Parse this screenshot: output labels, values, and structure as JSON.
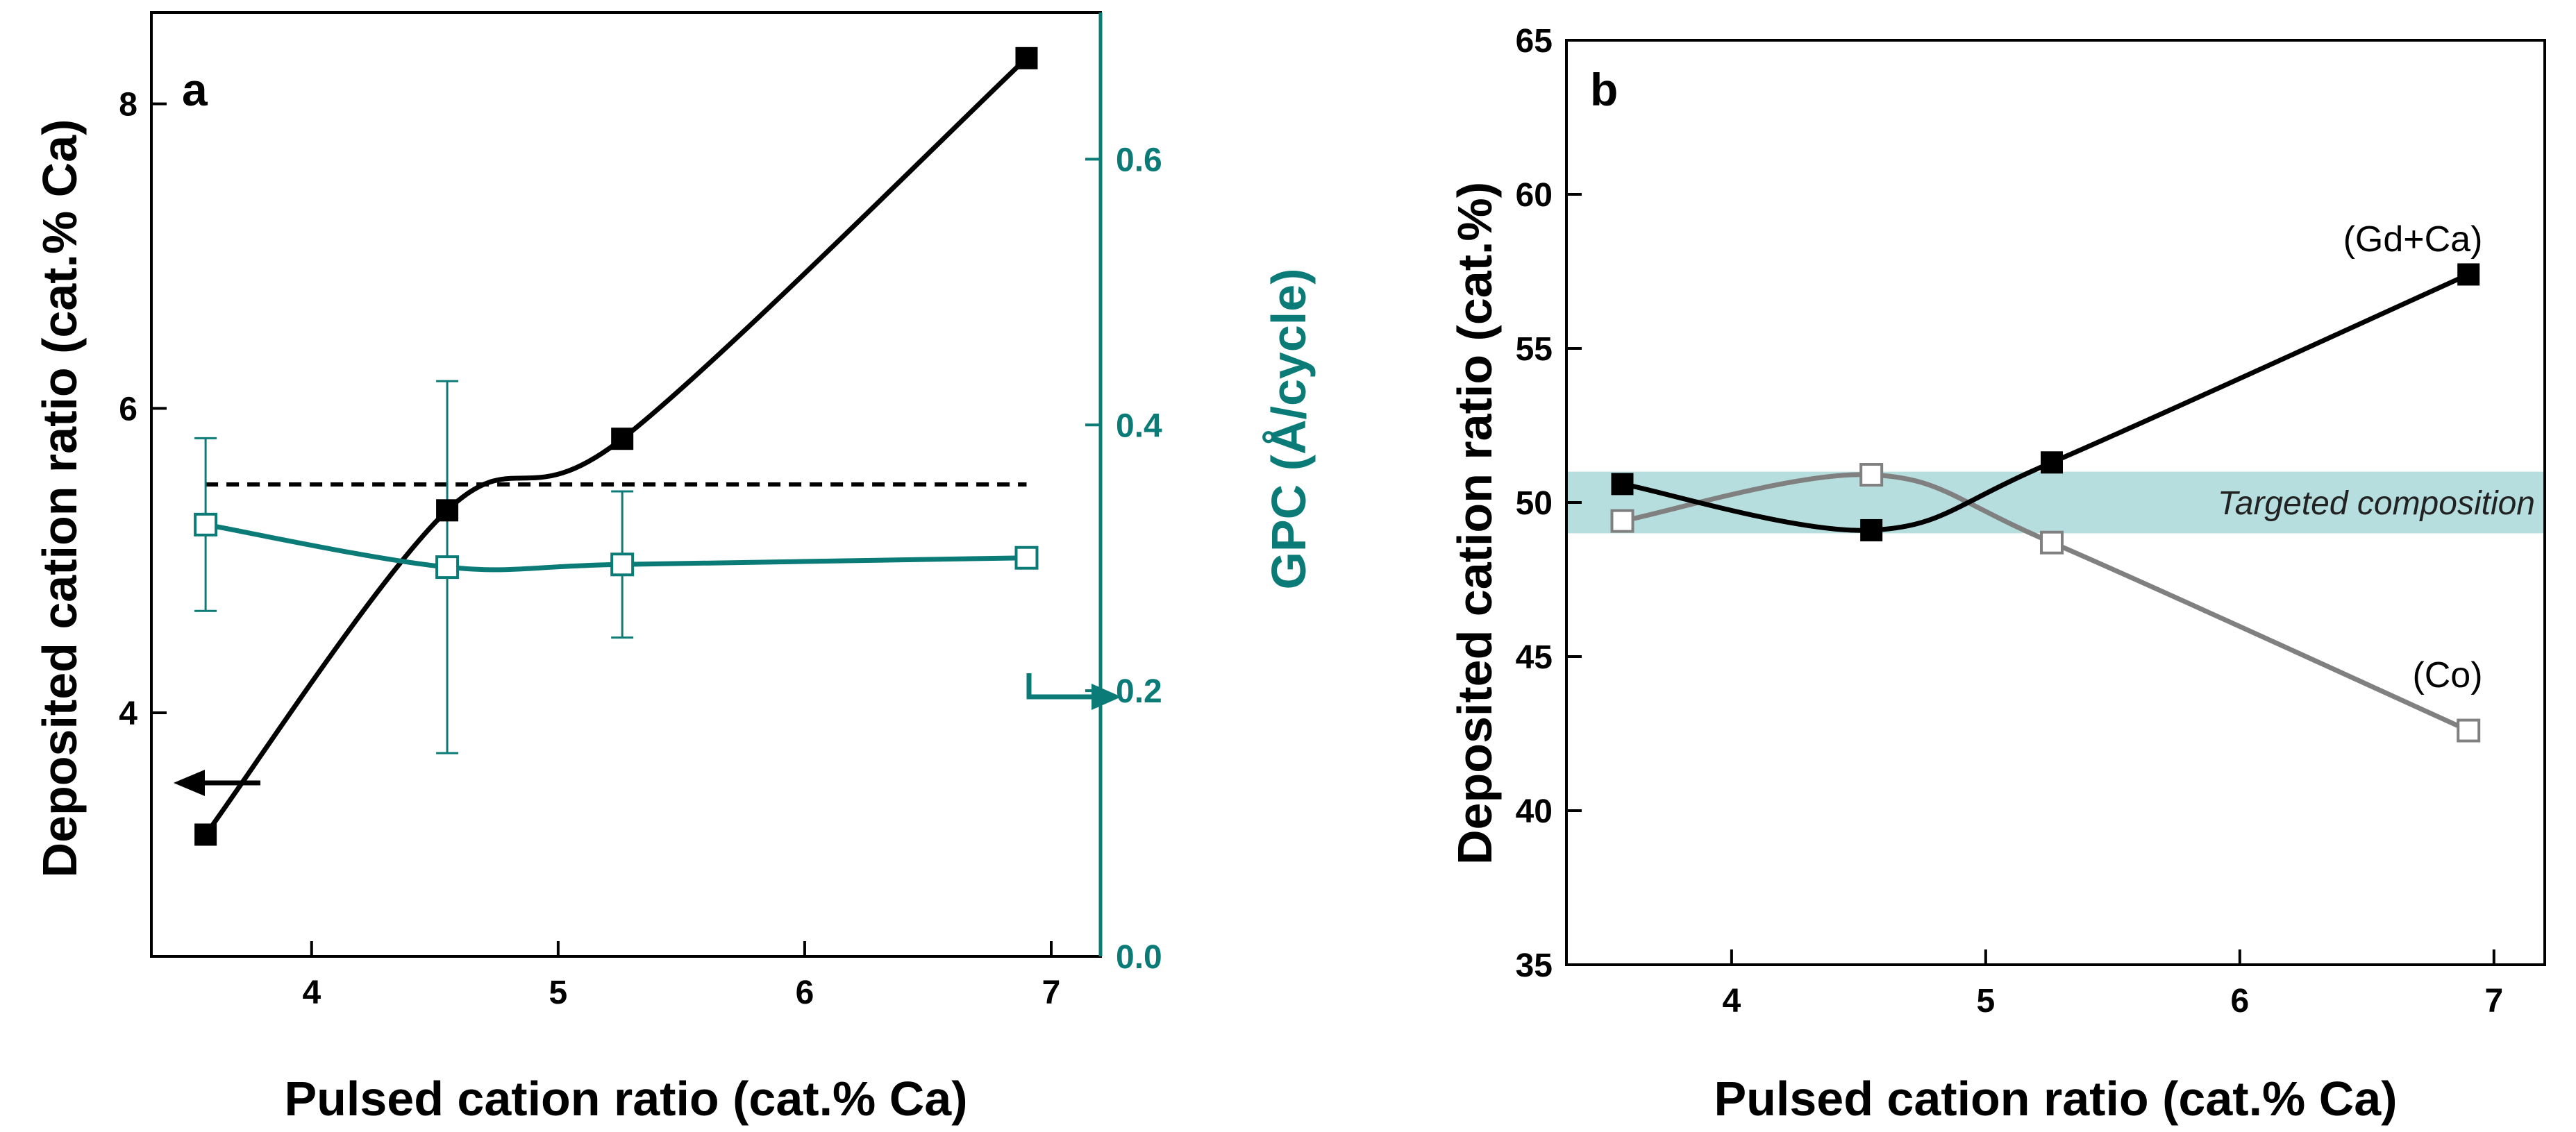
{
  "colors": {
    "black": "#000000",
    "teal": "#0b7b78",
    "gray": "#808080",
    "band": "#9fd3d3"
  },
  "chart_data": [
    {
      "type": "line",
      "panel_label": "a",
      "xlabel": "Pulsed cation ratio (cat.% Ca)",
      "ylabel": "Deposited cation ratio (cat.% Ca)",
      "y2label": "GPC (Å/cycle)",
      "xlim": [
        3.35,
        7.2
      ],
      "ylim": [
        2.4,
        8.6
      ],
      "y2lim": [
        0.0,
        0.7
      ],
      "xticks": [
        4,
        5,
        6,
        7
      ],
      "yticks": [
        4,
        6,
        8
      ],
      "y2ticks": [
        0.0,
        0.2,
        0.4,
        0.6
      ],
      "y2tick_labels": [
        "0.0",
        "0.2",
        "0.4",
        "0.6"
      ],
      "reference_line": {
        "y": 5.5,
        "style": "dashed"
      },
      "series": [
        {
          "name": "Deposited cation ratio",
          "axis": "left",
          "marker": "filled-square",
          "x": [
            3.57,
            4.55,
            5.26,
            6.9
          ],
          "values": [
            3.2,
            5.33,
            5.8,
            8.3
          ]
        },
        {
          "name": "GPC",
          "axis": "right",
          "marker": "open-square",
          "x": [
            3.57,
            4.55,
            5.26,
            6.9
          ],
          "values": [
            0.325,
            0.293,
            0.295,
            0.3
          ],
          "errors": [
            0.065,
            0.14,
            0.055,
            0.0
          ]
        }
      ],
      "annotations": [
        {
          "type": "arrow-left",
          "series": "Deposited cation ratio"
        },
        {
          "type": "arrow-right",
          "series": "GPC"
        }
      ]
    },
    {
      "type": "line",
      "panel_label": "b",
      "xlabel": "Pulsed cation ratio (cat.% Ca)",
      "ylabel": "Deposited cation ratio (cat.%)",
      "xlim": [
        3.35,
        7.2
      ],
      "ylim": [
        35,
        65
      ],
      "xticks": [
        4,
        5,
        6,
        7
      ],
      "yticks": [
        35,
        40,
        45,
        50,
        55,
        60,
        65
      ],
      "band": {
        "y_range": [
          49,
          51
        ],
        "label": "Targeted composition"
      },
      "series": [
        {
          "name": "(Gd+Ca)",
          "marker": "filled-square",
          "x": [
            3.57,
            4.55,
            5.26,
            6.9
          ],
          "values": [
            50.6,
            49.1,
            51.3,
            57.4
          ]
        },
        {
          "name": "(Co)",
          "marker": "open-square",
          "x": [
            3.57,
            4.55,
            5.26,
            6.9
          ],
          "values": [
            49.4,
            50.9,
            48.7,
            42.6
          ]
        }
      ]
    }
  ]
}
